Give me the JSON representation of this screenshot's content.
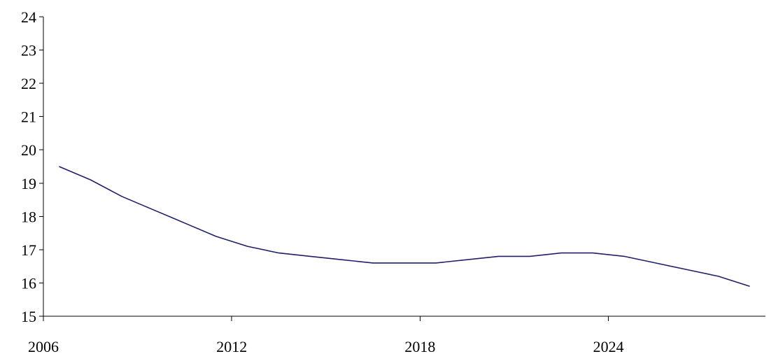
{
  "chart_data": {
    "type": "line",
    "title": "",
    "xlabel": "",
    "ylabel": "",
    "x_tick_labels": [
      "2006",
      "2012",
      "2018",
      "2024"
    ],
    "y_tick_labels": [
      "15",
      "16",
      "17",
      "18",
      "19",
      "20",
      "21",
      "22",
      "23",
      "24"
    ],
    "xlim": [
      2006,
      2029
    ],
    "ylim": [
      15,
      24
    ],
    "grid": false,
    "legend": "none",
    "series": [
      {
        "color": "#1f1f6b",
        "x": [
          2006.5,
          2007.5,
          2008.5,
          2009.5,
          2010.5,
          2011.5,
          2012.5,
          2013.5,
          2014.5,
          2015.5,
          2016.5,
          2017.5,
          2018.5,
          2019.5,
          2020.5,
          2021.5,
          2022.5,
          2023.5,
          2024.5,
          2025.5,
          2026.5,
          2027.5,
          2028.5
        ],
        "y": [
          19.5,
          19.1,
          18.6,
          18.2,
          17.8,
          17.4,
          17.1,
          16.9,
          16.8,
          16.7,
          16.6,
          16.6,
          16.6,
          16.7,
          16.8,
          16.8,
          16.9,
          16.9,
          16.8,
          16.6,
          16.4,
          16.2,
          15.9
        ]
      }
    ]
  }
}
